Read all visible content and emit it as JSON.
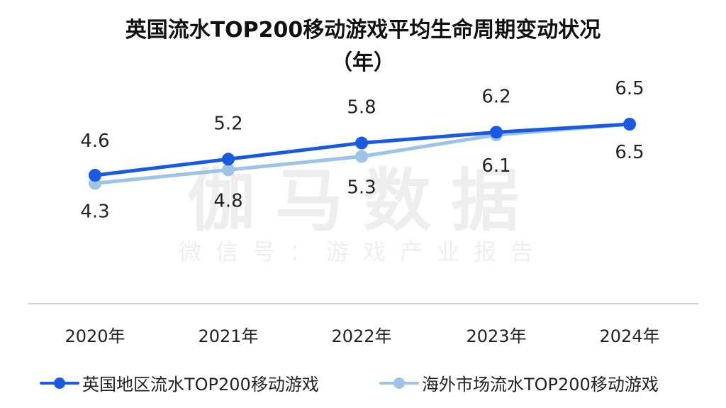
{
  "title_line1": "英国流水TOP200移动游戏平均生命周期变动状况",
  "title_line2": "（年）",
  "watermark": {
    "main": "伽马数据",
    "sub": "微信号：游戏产业报告"
  },
  "colors": {
    "series1": "#1a5ae0",
    "series2": "#9dc3e6",
    "axis": "#d0d0d0",
    "text": "#222222"
  },
  "chart_data": {
    "type": "line",
    "x": [
      "2020年",
      "2021年",
      "2022年",
      "2023年",
      "2024年"
    ],
    "series": [
      {
        "name": "英国地区流水TOP200移动游戏",
        "values": [
          4.6,
          5.2,
          5.8,
          6.2,
          6.5
        ],
        "labels": [
          "4.6",
          "5.2",
          "5.8",
          "6.2",
          "6.5"
        ]
      },
      {
        "name": "海外市场流水TOP200移动游戏",
        "values": [
          4.3,
          4.8,
          5.3,
          6.1,
          6.5
        ],
        "labels": [
          "4.3",
          "4.8",
          "5.3",
          "6.1",
          "6.5"
        ]
      }
    ],
    "legend_position": "bottom",
    "grid": false
  }
}
